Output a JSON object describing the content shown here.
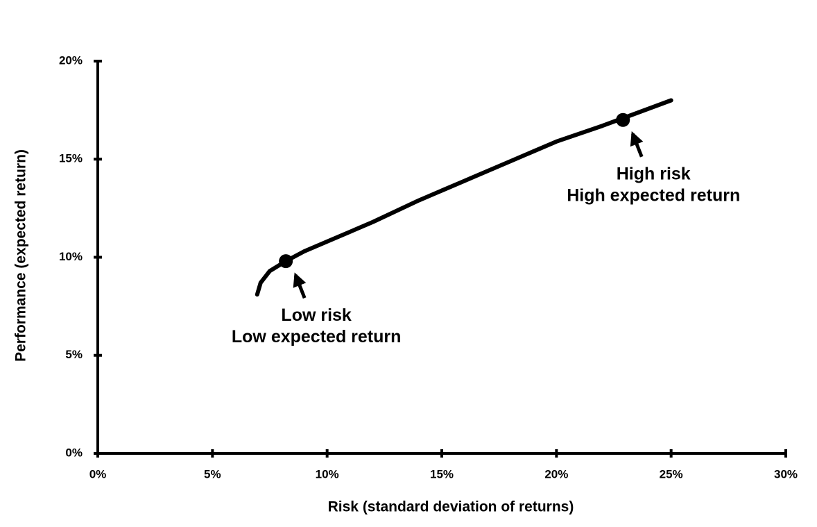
{
  "chart_data": {
    "type": "line",
    "x_label": "Risk (standard deviation of returns)",
    "y_label": "Performance (expected return)",
    "x": [
      6.95,
      7.1,
      7.5,
      8.2,
      9,
      10,
      12,
      14,
      16,
      18,
      20,
      22,
      25
    ],
    "values": [
      8.1,
      8.7,
      9.3,
      9.8,
      10.3,
      10.8,
      11.8,
      12.9,
      13.9,
      14.9,
      15.9,
      16.7,
      18.0
    ],
    "color": "#000000",
    "highlights": {
      "x": [
        8.2,
        22.9
      ],
      "values": [
        9.8,
        17.0
      ],
      "labels": [
        [
          "Low risk",
          "Low expected return"
        ],
        [
          "High risk",
          "High expected return"
        ]
      ]
    },
    "xlim": [
      0,
      30
    ],
    "ylim": [
      0,
      20
    ],
    "xticks": [
      {
        "value": 0,
        "label": "0%"
      },
      {
        "value": 5,
        "label": "5%"
      },
      {
        "value": 10,
        "label": "10%"
      },
      {
        "value": 15,
        "label": "15%"
      },
      {
        "value": 20,
        "label": "20%"
      },
      {
        "value": 25,
        "label": "25%"
      },
      {
        "value": 30,
        "label": "30%"
      }
    ],
    "yticks": [
      {
        "value": 0,
        "label": "0%"
      },
      {
        "value": 5,
        "label": "5%"
      },
      {
        "value": 10,
        "label": "10%"
      },
      {
        "value": 15,
        "label": "15%"
      },
      {
        "value": 20,
        "label": "20%"
      }
    ],
    "grid": false
  }
}
